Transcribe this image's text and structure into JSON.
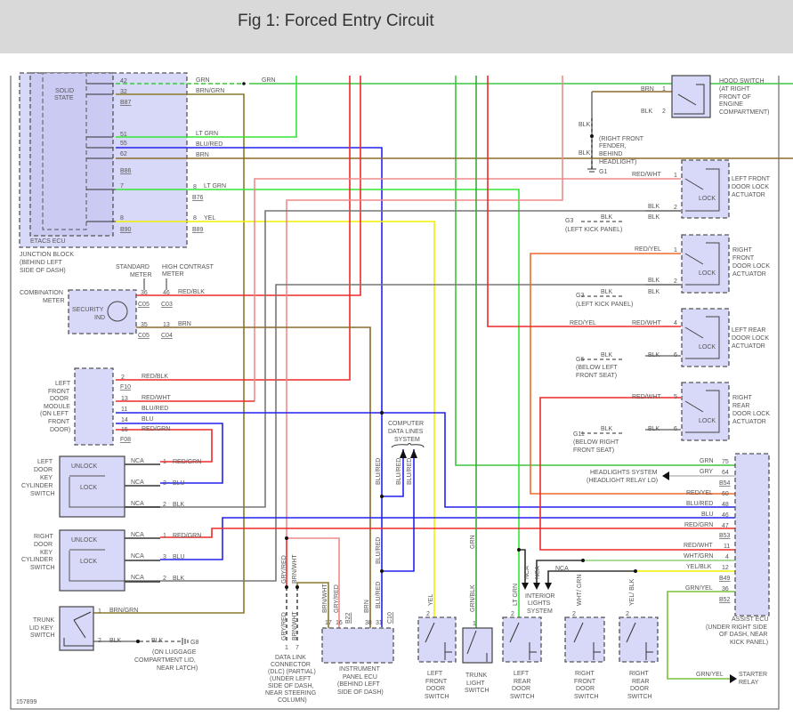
{
  "title": "Fig 1: Forced Entry Circuit",
  "figure_id": "157899",
  "junction_block": {
    "solid_state": [
      "SOLID",
      "STATE"
    ],
    "etacs": "ETACS ECU",
    "label": [
      "JUNCTION BLOCK",
      "(BEHIND LEFT",
      "SIDE OF DASH)"
    ],
    "pins": [
      "42",
      "32",
      "51",
      "55",
      "62",
      "7",
      "8",
      "8",
      "8"
    ],
    "connectors": [
      "B87",
      "B86",
      "B76",
      "B90",
      "B89"
    ]
  },
  "wires": {
    "grn": "GRN",
    "brn_grn": "BRN/GRN",
    "lt_grn": "LT GRN",
    "blu_red": "BLU/RED",
    "brn": "BRN",
    "yel": "YEL",
    "red_blk": "RED/BLK",
    "red_wht": "RED/WHT",
    "blu": "BLU",
    "red_grn": "RED/GRN",
    "blk": "BLK",
    "red_yel": "RED/YEL",
    "gry": "GRY",
    "wht_grn": "WHT/GRN",
    "yel_blk": "YEL/BLK",
    "grn_yel": "GRN/YEL",
    "nca": "NCA",
    "gry_red": "GRY/RED",
    "brn_wht": "BRN/WHT",
    "grn_blk": "GRN/BLK",
    "wht_grn2": "WHT/ GRN",
    "yel_blk2": "YEL/ BLK"
  },
  "meter": {
    "standard": [
      "STANDARD",
      "METER"
    ],
    "high_contrast": [
      "HIGH CONTRAST",
      "METER"
    ],
    "label": [
      "COMBINATION",
      "METER"
    ],
    "security": [
      "SECURITY",
      "IND"
    ],
    "pins": [
      "36",
      "46",
      "35",
      "13"
    ],
    "connectors": [
      "C05",
      "C03",
      "C05",
      "C04"
    ]
  },
  "door_module": {
    "label": [
      "LEFT",
      "FRONT",
      "DOOR",
      "MODULE",
      "(ON LEFT",
      "FRONT",
      "DOOR)"
    ],
    "pins": [
      "2",
      "13",
      "11",
      "14",
      "15"
    ],
    "connectors": [
      "F10",
      "F08"
    ]
  },
  "left_key": {
    "label": [
      "LEFT",
      "DOOR",
      "KEY",
      "CYLINDER",
      "SWITCH"
    ],
    "unlock": "UNLOCK",
    "lock": "LOCK",
    "pins": [
      "1",
      "3",
      "2"
    ]
  },
  "right_key": {
    "label": [
      "RIGHT",
      "DOOR",
      "KEY",
      "CYLINDER",
      "SWITCH"
    ],
    "unlock": "UNLOCK",
    "lock": "LOCK",
    "pins": [
      "1",
      "3",
      "2"
    ]
  },
  "trunk_lid": {
    "label": [
      "TRUNK",
      "LID KEY",
      "SWITCH"
    ],
    "pins": [
      "1",
      "2"
    ],
    "ground": "G8",
    "ground_loc": [
      "(ON LUGGAGE",
      "COMPARTMENT LID,",
      "NEAR LATCH)"
    ]
  },
  "dlc": {
    "label": [
      "DATA LINK",
      "CONNECTOR",
      "(DLC) (PARTIAL)",
      "(UNDER LEFT",
      "SIDE OF DASH,",
      "NEAR STEERING",
      "COLUMN)"
    ],
    "pins": [
      "1",
      "7"
    ]
  },
  "ip_ecu": {
    "label": [
      "INSTRUMENT",
      "PANEL ECU",
      "(BEHIND LEFT",
      "SIDE OF DASH)"
    ],
    "pins": [
      "17",
      "16",
      "38",
      "31"
    ],
    "connectors": [
      "B22",
      "C10"
    ]
  },
  "data_lines": [
    "COMPUTER",
    "DATA LINES",
    "SYSTEM"
  ],
  "hood": {
    "label": [
      "HOOD SWITCH",
      "(AT RIGHT",
      "FRONT OF",
      "ENGINE",
      "COMPARTMENT)"
    ],
    "pins": [
      "1",
      "2"
    ],
    "ground": "G1",
    "ground_loc": [
      "(RIGHT FRONT",
      "FENDER,",
      "BEHIND",
      "HEADLIGHT)"
    ]
  },
  "actuators": [
    {
      "label": [
        "LEFT FRONT",
        "DOOR LOCK",
        "ACTUATOR"
      ],
      "pins": [
        "1",
        "2"
      ],
      "ground": "G3",
      "ground_loc": [
        "(LEFT KICK PANEL)"
      ]
    },
    {
      "label": [
        "RIGHT",
        "FRONT",
        "DOOR LOCK",
        "ACTUATOR"
      ],
      "pins": [
        "1",
        "2"
      ],
      "ground": "G3",
      "ground_loc": [
        "(LEFT KICK PANEL)"
      ]
    },
    {
      "label": [
        "LEFT REAR",
        "DOOR LOCK",
        "ACTUATOR"
      ],
      "pins": [
        "4",
        "6"
      ],
      "ground": "G6",
      "ground_loc": [
        "(BELOW LEFT",
        "FRONT SEAT)"
      ]
    },
    {
      "label": [
        "RIGHT",
        "REAR",
        "DOOR LOCK",
        "ACTUATOR"
      ],
      "pins": [
        "5",
        "6"
      ],
      "ground": "G11",
      "ground_loc": [
        "(BELOW RIGHT",
        "FRONT SEAT)"
      ]
    }
  ],
  "lock_text": "LOCK",
  "assist_ecu": {
    "label": [
      "ASSIST ECU",
      "(UNDER RIGHT SIDE",
      "OF DASH, NEAR",
      "KICK PANEL)"
    ],
    "pins": [
      "75",
      "64",
      "60",
      "48",
      "46",
      "47",
      "11",
      "4",
      "12",
      "36"
    ],
    "connectors": [
      "B54",
      "B53",
      "B49",
      "B52"
    ]
  },
  "headlights": [
    "HEADLIGHTS SYSTEM",
    "(HEADLIGHT RELAY LO)"
  ],
  "starter": [
    "STARTER",
    "RELAY"
  ],
  "interior": [
    "INTERIOR",
    "LIGHTS",
    "SYSTEM"
  ],
  "switches": [
    {
      "label": [
        "LEFT",
        "FRONT",
        "DOOR",
        "SWITCH"
      ],
      "pin": "2"
    },
    {
      "label": [
        "TRUNK",
        "LIGHT",
        "SWITCH"
      ],
      "pin": "1"
    },
    {
      "label": [
        "LEFT",
        "REAR",
        "DOOR",
        "SWITCH"
      ],
      "pin": "2"
    },
    {
      "label": [
        "RIGHT",
        "FRONT",
        "DOOR",
        "SWITCH"
      ],
      "pin": "2"
    },
    {
      "label": [
        "RIGHT",
        "REAR",
        "DOOR",
        "SWITCH"
      ],
      "pin": "2"
    }
  ]
}
